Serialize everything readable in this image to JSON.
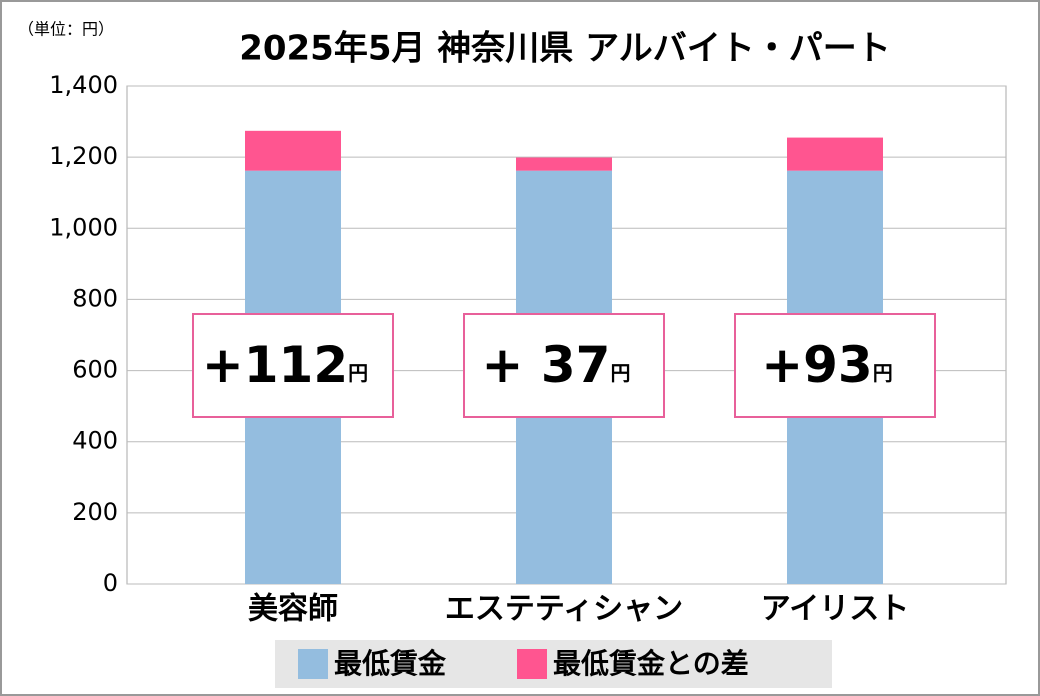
{
  "chart_data": {
    "type": "stacked-bar",
    "title": "2025年5月 神奈川県 アルバイト・パート",
    "unit": "（単位：円）",
    "categories": [
      "美容師",
      "エステティシャン",
      "アイリスト"
    ],
    "series": [
      {
        "name": "最低賃金",
        "color": "#94bddf",
        "values": [
          1162,
          1162,
          1162
        ]
      },
      {
        "name": "最低賃金との差",
        "color": "#ff5590",
        "values": [
          112,
          37,
          93
        ],
        "value_labels": [
          "+112",
          "+ 37",
          "+93"
        ],
        "label_unit": "円"
      }
    ],
    "ylim": [
      0,
      1400
    ],
    "yticks": [
      0,
      200,
      400,
      600,
      800,
      {
        "value": 1000,
        "label": "1,000"
      },
      {
        "value": 1200,
        "label": "1,200"
      },
      {
        "value": 1400,
        "label": "1,400"
      }
    ],
    "grid": true
  }
}
